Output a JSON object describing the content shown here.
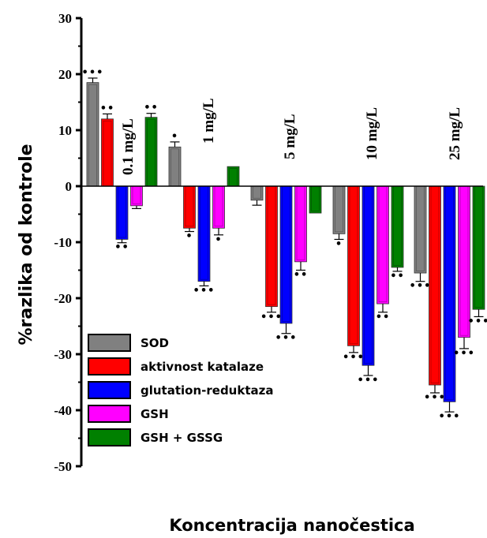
{
  "chart_data": {
    "type": "bar",
    "ylabel": "%razlika od kontrole",
    "xlabel": "Koncentracija nanočestica",
    "ylim": [
      -50,
      30
    ],
    "yticks": [
      30,
      20,
      10,
      0,
      -10,
      -20,
      -30,
      -40,
      -50
    ],
    "categories": [
      "0.1 mg/L",
      "1 mg/L",
      "5 mg/L",
      "10 mg/L",
      "25 mg/L"
    ],
    "series": [
      {
        "name": "SOD",
        "color": "#808080",
        "values": [
          18.5,
          7.0,
          -2.5,
          -8.5,
          -15.5
        ],
        "errors": [
          0.8,
          0.9,
          0.9,
          1.0,
          1.5
        ],
        "sig": [
          "***",
          "*",
          "",
          "*",
          "***"
        ]
      },
      {
        "name": "aktivnost katalaze",
        "color": "#ff0000",
        "values": [
          12.0,
          -7.5,
          -21.5,
          -28.5,
          -35.5
        ],
        "errors": [
          0.9,
          0.6,
          1.0,
          1.2,
          1.4
        ],
        "sig": [
          "**",
          "*",
          "***",
          "***",
          "***"
        ]
      },
      {
        "name": "glutation-reduktaza",
        "color": "#0000ff",
        "values": [
          -9.5,
          -17.0,
          -24.5,
          -32.0,
          -38.5
        ],
        "errors": [
          0.6,
          0.8,
          1.8,
          1.8,
          1.8
        ],
        "sig": [
          "**",
          "***",
          "***",
          "***",
          "***"
        ]
      },
      {
        "name": "GSH",
        "color": "#ff00ff",
        "values": [
          -3.5,
          -7.5,
          -13.5,
          -21.0,
          -27.0
        ],
        "errors": [
          0.5,
          1.2,
          1.5,
          1.5,
          2.0
        ],
        "sig": [
          "",
          "*",
          "**",
          "**",
          "***"
        ]
      },
      {
        "name": "GSH + GSSG",
        "color": "#008000",
        "values": [
          12.3,
          3.5,
          -4.8,
          -14.5,
          -22.0
        ],
        "errors": [
          0.7,
          0.0,
          0.0,
          0.7,
          1.3
        ],
        "sig": [
          "**",
          "",
          "",
          "**",
          "***"
        ]
      }
    ],
    "legend": "bottom-left",
    "grid": false
  }
}
